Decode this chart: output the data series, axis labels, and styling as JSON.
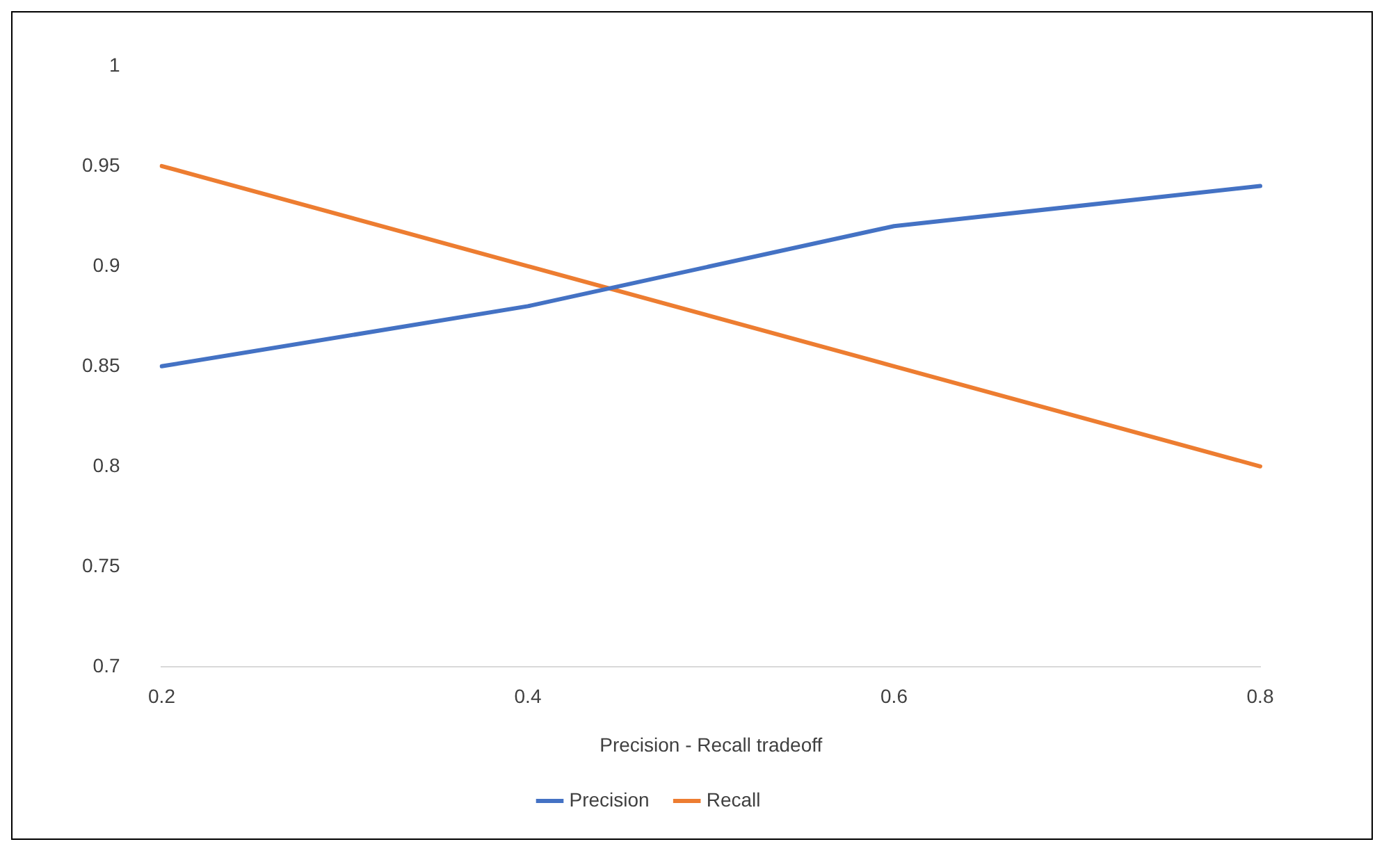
{
  "chart_data": {
    "type": "line",
    "xlabel": "Precision - Recall tradeoff",
    "categories": [
      "0.2",
      "0.4",
      "0.6",
      "0.8"
    ],
    "series": [
      {
        "name": "Precision",
        "color": "#4472c4",
        "values": [
          0.85,
          0.88,
          0.92,
          0.94
        ]
      },
      {
        "name": "Recall",
        "color": "#ed7d31",
        "values": [
          0.95,
          0.9,
          0.85,
          0.8
        ]
      }
    ],
    "ylim": [
      0.7,
      1
    ],
    "yticks": [
      0.7,
      0.75,
      0.8,
      0.85,
      0.9,
      0.95,
      1
    ],
    "grid": false,
    "legend": "bottom",
    "marker": "none",
    "line_style": "solid"
  }
}
